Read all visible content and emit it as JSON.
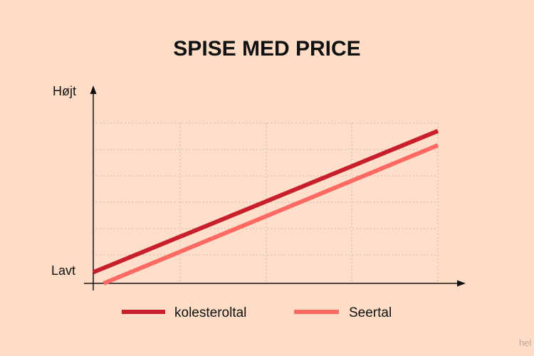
{
  "chart_data": {
    "type": "line",
    "title": "SPISE MED PRICE",
    "y_tick_labels": {
      "high": "Højt",
      "low": "Lavt"
    },
    "xlim": [
      0,
      1
    ],
    "ylim": [
      0,
      1
    ],
    "grid": true,
    "legend_position": "bottom",
    "series": [
      {
        "name": "kolesteroltal",
        "color": "#c8202a",
        "x": [
          0,
          1
        ],
        "y": [
          0.07,
          0.96
        ]
      },
      {
        "name": "Seertal",
        "color": "#fd6a63",
        "x": [
          0.03,
          1
        ],
        "y": [
          0.0,
          0.87
        ]
      }
    ]
  },
  "colors": {
    "background": "#fedcc6",
    "plot_background": "#fedfcc",
    "grid": "#c9b8ad",
    "axis": "#111111"
  },
  "watermark": "hel"
}
